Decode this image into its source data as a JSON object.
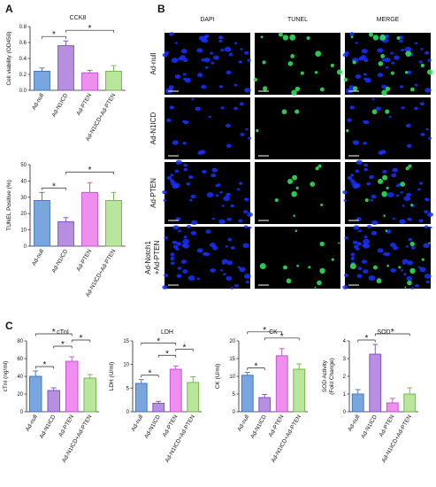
{
  "panels": [
    {
      "letter": "A"
    },
    {
      "letter": "B"
    },
    {
      "letter": "C"
    }
  ],
  "microscopy": {
    "columns": [
      "DAPI",
      "TUNEL",
      "MERGE"
    ],
    "rows": [
      "Ad-null",
      "Ad-N1ICD",
      "Ad-PTEN",
      "Ad-Notch1\n+Ad-PTEN"
    ],
    "tunel_signal": [
      0.8,
      0.12,
      0.45,
      0.55
    ],
    "dapi_density": [
      0.8,
      0.35,
      0.75,
      0.9
    ],
    "colors": {
      "dapi": "#1633ff",
      "tunel": "#2ee05a",
      "bg": "#000000"
    }
  },
  "chart_data": [
    {
      "type": "bar",
      "title": "CCK8",
      "ylabel": "Cell viability (OD450)",
      "categories": [
        "Ad-null",
        "Ad-N1ICD",
        "Ad-PTEN",
        "Ad-N1ICD+Ad-PTEN"
      ],
      "values": [
        0.24,
        0.56,
        0.22,
        0.24
      ],
      "errors": [
        0.04,
        0.06,
        0.03,
        0.07
      ],
      "ylim": [
        0,
        0.8
      ],
      "yticks": [
        "0.0",
        "0.2",
        "0.4",
        "0.6",
        "0.8"
      ],
      "colors": [
        "#7aa6e0",
        "#b78fe0",
        "#f08ef0",
        "#b8e69a"
      ],
      "edges": [
        "#3f6fb5",
        "#7a4bbf",
        "#c04ad0",
        "#6fae4a"
      ],
      "significance": [
        {
          "from": 0,
          "to": 1,
          "label": "*",
          "level": 0
        },
        {
          "from": 1,
          "to": 3,
          "label": "*",
          "level": 1
        }
      ]
    },
    {
      "type": "bar",
      "title": "",
      "ylabel": "TUNEL Positive (%)",
      "categories": [
        "Ad-null",
        "Ad-N1ICD",
        "Ad-PTEN",
        "Ad-N1ICD+Ad-PTEN"
      ],
      "values": [
        28,
        15,
        33,
        28
      ],
      "errors": [
        5,
        2.5,
        6,
        5
      ],
      "ylim": [
        0,
        50
      ],
      "yticks": [
        "0",
        "10",
        "20",
        "30",
        "40",
        "50"
      ],
      "colors": [
        "#7aa6e0",
        "#b78fe0",
        "#f08ef0",
        "#b8e69a"
      ],
      "edges": [
        "#3f6fb5",
        "#7a4bbf",
        "#c04ad0",
        "#6fae4a"
      ],
      "significance": [
        {
          "from": 0,
          "to": 1,
          "label": "*",
          "level": 0
        },
        {
          "from": 1,
          "to": 3,
          "label": "*",
          "level": 1
        }
      ]
    },
    {
      "type": "bar",
      "title": "cTnI",
      "ylabel": "cTnI (ng/ml)",
      "categories": [
        "Ad-null",
        "Ad-N1ICD",
        "Ad-PTEN",
        "Ad-N1ICD+Ad-PTEN"
      ],
      "values": [
        40,
        24,
        57,
        38
      ],
      "errors": [
        6,
        3,
        5,
        4
      ],
      "ylim": [
        0,
        80
      ],
      "yticks": [
        "0",
        "20",
        "40",
        "60",
        "80"
      ],
      "colors": [
        "#7aa6e0",
        "#b78fe0",
        "#f08ef0",
        "#b8e69a"
      ],
      "edges": [
        "#3f6fb5",
        "#7a4bbf",
        "#c04ad0",
        "#6fae4a"
      ],
      "significance": [
        {
          "from": 0,
          "to": 1,
          "label": "*",
          "level": 0
        },
        {
          "from": 1,
          "to": 2,
          "label": "*",
          "level": 1
        },
        {
          "from": 2,
          "to": 3,
          "label": "*",
          "level": 2
        },
        {
          "from": 0,
          "to": 2,
          "label": "*",
          "level": 3
        }
      ]
    },
    {
      "type": "bar",
      "title": "LDH",
      "ylabel": "LDH (U/ml)",
      "categories": [
        "Ad-null",
        "Ad-N1ICD",
        "Ad-PTEN",
        "Ad-N1ICD+Ad-PTEN"
      ],
      "values": [
        6.0,
        1.8,
        9.0,
        6.2
      ],
      "errors": [
        0.8,
        0.4,
        0.7,
        1.2
      ],
      "ylim": [
        0,
        15
      ],
      "yticks": [
        "0",
        "5",
        "10",
        "15"
      ],
      "colors": [
        "#7aa6e0",
        "#b78fe0",
        "#f08ef0",
        "#b8e69a"
      ],
      "edges": [
        "#3f6fb5",
        "#7a4bbf",
        "#c04ad0",
        "#6fae4a"
      ],
      "significance": [
        {
          "from": 0,
          "to": 1,
          "label": "*",
          "level": 0
        },
        {
          "from": 1,
          "to": 2,
          "label": "*",
          "level": 1
        },
        {
          "from": 2,
          "to": 3,
          "label": "*",
          "level": 2
        },
        {
          "from": 0,
          "to": 2,
          "label": "*",
          "level": 3
        }
      ]
    },
    {
      "type": "bar",
      "title": "CK",
      "ylabel": "CK (U/ml)",
      "categories": [
        "Ad-null",
        "Ad-N1ICD",
        "Ad-PTEN",
        "Ad-N1ICD+Ad-PTEN"
      ],
      "values": [
        10.3,
        4.0,
        15.8,
        12.0
      ],
      "errors": [
        0.8,
        0.9,
        2.0,
        1.5
      ],
      "ylim": [
        0,
        20
      ],
      "yticks": [
        "0",
        "5",
        "10",
        "15",
        "20"
      ],
      "colors": [
        "#7aa6e0",
        "#b78fe0",
        "#f08ef0",
        "#b8e69a"
      ],
      "edges": [
        "#3f6fb5",
        "#7a4bbf",
        "#c04ad0",
        "#6fae4a"
      ],
      "significance": [
        {
          "from": 0,
          "to": 1,
          "label": "*",
          "level": 0
        },
        {
          "from": 1,
          "to": 3,
          "label": "*",
          "level": 1
        },
        {
          "from": 0,
          "to": 2,
          "label": "*",
          "level": 2
        }
      ]
    },
    {
      "type": "bar",
      "title": "SOD",
      "ylabel": "SOD Activity\n(Fold Change)",
      "categories": [
        "Ad-null",
        "Ad-N1ICD",
        "Ad-PTEN",
        "Ad-N1ICD+Ad-PTEN"
      ],
      "values": [
        1.0,
        3.25,
        0.5,
        1.0
      ],
      "errors": [
        0.25,
        0.55,
        0.25,
        0.35
      ],
      "ylim": [
        0,
        4
      ],
      "yticks": [
        "0",
        "1",
        "2",
        "3",
        "4"
      ],
      "colors": [
        "#7aa6e0",
        "#b78fe0",
        "#f08ef0",
        "#b8e69a"
      ],
      "edges": [
        "#3f6fb5",
        "#7a4bbf",
        "#c04ad0",
        "#6fae4a"
      ],
      "significance": [
        {
          "from": 0,
          "to": 1,
          "label": "*",
          "level": 0
        },
        {
          "from": 1,
          "to": 3,
          "label": "*",
          "level": 1
        }
      ]
    }
  ]
}
